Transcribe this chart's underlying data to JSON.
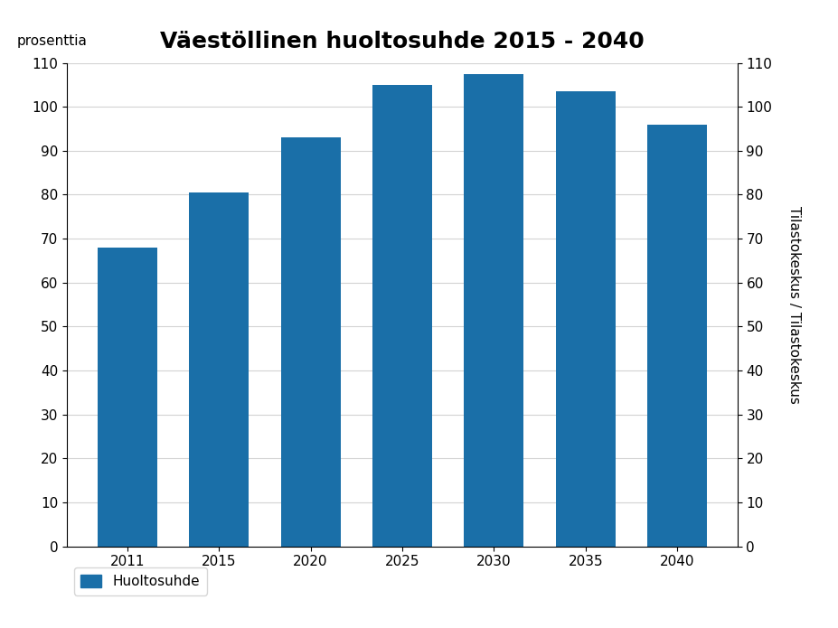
{
  "title": "Väestöllinen huoltosuhde 2015 - 2040",
  "categories": [
    "2011",
    "2015",
    "2020",
    "2025",
    "2030",
    "2035",
    "2040"
  ],
  "values": [
    68,
    80.5,
    93,
    105,
    107.5,
    103.5,
    96
  ],
  "bar_color": "#1a6fa8",
  "ylabel_left": "prosenttia",
  "ylabel_right": "Tilastokeskus / Tilastokeskus",
  "ylim": [
    0,
    110
  ],
  "yticks": [
    0,
    10,
    20,
    30,
    40,
    50,
    60,
    70,
    80,
    90,
    100,
    110
  ],
  "legend_label": "Huoltosuhde",
  "background_color": "#ffffff",
  "title_fontsize": 18,
  "axis_fontsize": 11,
  "tick_fontsize": 11
}
